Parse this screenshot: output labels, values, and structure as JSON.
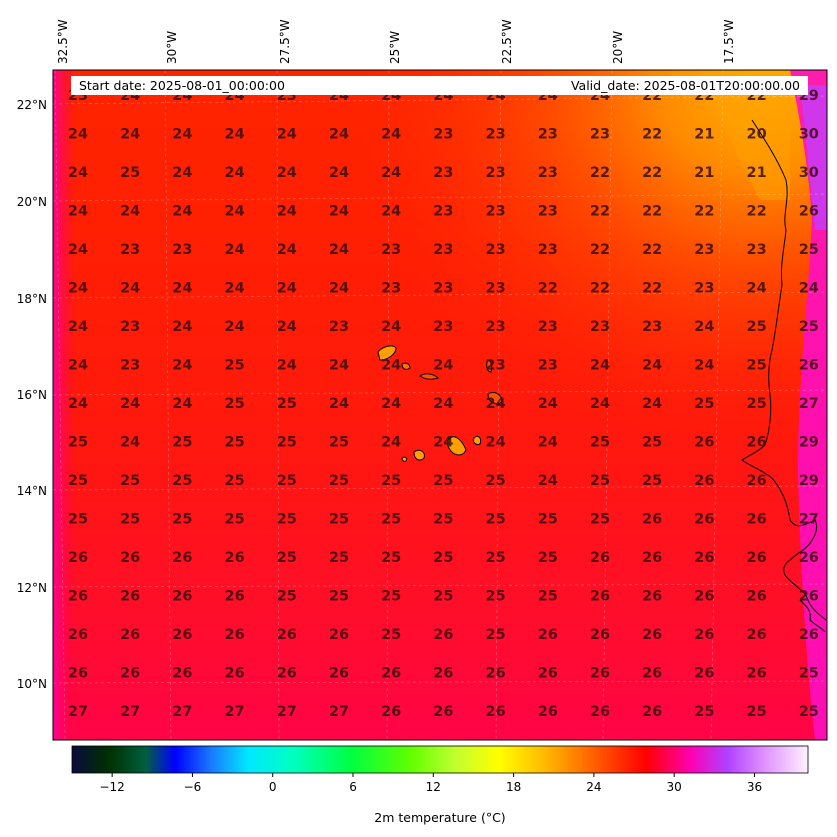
{
  "header": {
    "start_date": "Start date: 2025-08-01_00:00:00",
    "valid_date": "Valid_date: 2025-08-01T20:00:00.00"
  },
  "lon_labels": [
    "32.5°W",
    "30°W",
    "27.5°W",
    "25°W",
    "22.5°W",
    "20°W",
    "17.5°W"
  ],
  "lat_labels": [
    "22°N",
    "20°N",
    "18°N",
    "16°N",
    "14°N",
    "12°N",
    "10°N"
  ],
  "grid_values": [
    [
      "23",
      "24",
      "24",
      "24",
      "23",
      "24",
      "24",
      "24",
      "24",
      "24",
      "24",
      "22",
      "22",
      "22",
      "29"
    ],
    [
      "24",
      "24",
      "24",
      "24",
      "24",
      "24",
      "24",
      "23",
      "23",
      "23",
      "23",
      "22",
      "21",
      "20",
      "30"
    ],
    [
      "24",
      "25",
      "24",
      "24",
      "24",
      "24",
      "24",
      "23",
      "23",
      "23",
      "22",
      "22",
      "21",
      "21",
      "30"
    ],
    [
      "24",
      "24",
      "24",
      "24",
      "24",
      "24",
      "24",
      "23",
      "23",
      "23",
      "22",
      "22",
      "22",
      "22",
      "26"
    ],
    [
      "24",
      "23",
      "23",
      "24",
      "24",
      "24",
      "23",
      "23",
      "23",
      "23",
      "22",
      "22",
      "23",
      "23",
      "25"
    ],
    [
      "24",
      "24",
      "24",
      "24",
      "24",
      "24",
      "23",
      "23",
      "23",
      "22",
      "22",
      "22",
      "23",
      "24",
      "24"
    ],
    [
      "24",
      "23",
      "24",
      "24",
      "24",
      "23",
      "24",
      "23",
      "23",
      "23",
      "23",
      "23",
      "24",
      "25",
      "25"
    ],
    [
      "24",
      "23",
      "24",
      "25",
      "24",
      "24",
      "24",
      "24",
      "23",
      "23",
      "24",
      "24",
      "24",
      "25",
      "26"
    ],
    [
      "24",
      "24",
      "24",
      "25",
      "25",
      "24",
      "24",
      "24",
      "24",
      "24",
      "24",
      "24",
      "25",
      "25",
      "27"
    ],
    [
      "25",
      "24",
      "25",
      "25",
      "25",
      "25",
      "24",
      "24",
      "24",
      "24",
      "25",
      "25",
      "26",
      "26",
      "29"
    ],
    [
      "25",
      "25",
      "25",
      "25",
      "25",
      "25",
      "25",
      "25",
      "25",
      "24",
      "25",
      "25",
      "26",
      "26",
      "29"
    ],
    [
      "25",
      "25",
      "25",
      "25",
      "25",
      "25",
      "25",
      "25",
      "25",
      "25",
      "25",
      "26",
      "26",
      "26",
      "27"
    ],
    [
      "26",
      "26",
      "26",
      "26",
      "25",
      "25",
      "25",
      "25",
      "25",
      "25",
      "26",
      "26",
      "26",
      "26",
      "26"
    ],
    [
      "26",
      "26",
      "26",
      "26",
      "25",
      "25",
      "25",
      "25",
      "25",
      "25",
      "26",
      "26",
      "26",
      "26",
      "26"
    ],
    [
      "26",
      "26",
      "26",
      "26",
      "26",
      "26",
      "25",
      "26",
      "25",
      "26",
      "26",
      "26",
      "26",
      "26",
      "26"
    ],
    [
      "26",
      "26",
      "26",
      "26",
      "26",
      "26",
      "26",
      "26",
      "26",
      "26",
      "26",
      "26",
      "26",
      "26",
      "25"
    ],
    [
      "27",
      "27",
      "27",
      "27",
      "27",
      "27",
      "26",
      "26",
      "26",
      "26",
      "26",
      "26",
      "25",
      "25",
      "25"
    ]
  ],
  "colorbar": {
    "ticks": [
      "−12",
      "−6",
      "0",
      "6",
      "12",
      "18",
      "24",
      "30",
      "36"
    ],
    "label": "2m temperature ($^\\circ$C)",
    "min": -15,
    "max": 40
  },
  "colors": {
    "field_main": "#ff2400",
    "field_warm_south": "#ff0a2a",
    "field_cool_north": "#ff7000",
    "field_hot_coast": "#ff00ff"
  }
}
